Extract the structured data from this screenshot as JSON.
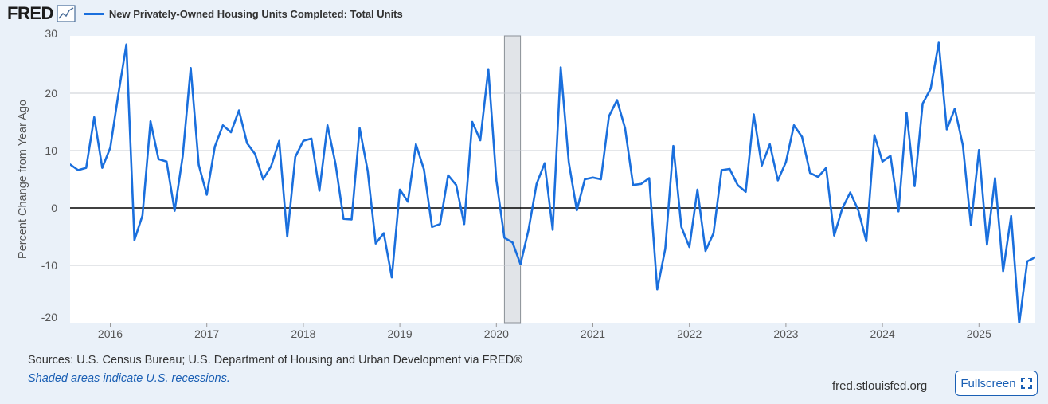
{
  "header": {
    "logo_text": "FRED",
    "graph_icon": "line-chart-icon",
    "title": "New Privately-Owned Housing Units Completed: Total Units",
    "series_color": "#1a6fdd"
  },
  "footer": {
    "sources": "Sources: U.S. Census Bureau; U.S. Department of Housing and Urban Development via FRED®",
    "recession_note": "Shaded areas indicate U.S. recessions.",
    "site": "fred.stlouisfed.org",
    "fullscreen_label": "Fullscreen",
    "fullscreen_icon": "expand-icon"
  },
  "chart_data": {
    "type": "line",
    "title": "New Privately-Owned Housing Units Completed: Total Units",
    "xlabel": "",
    "ylabel": "Percent Change from Year Ago",
    "ylim": [
      -20,
      30
    ],
    "xlim": [
      "2015-08",
      "2025-08"
    ],
    "y_ticks": [
      30,
      20,
      10,
      0,
      -10,
      -20
    ],
    "x_ticks": [
      "2016",
      "2017",
      "2018",
      "2019",
      "2020",
      "2021",
      "2022",
      "2023",
      "2024",
      "2025"
    ],
    "grid": true,
    "zero_line": true,
    "recession": {
      "start": "2020-02",
      "end": "2020-04"
    },
    "series": [
      {
        "color": "#1a6fdd",
        "x": [
          "2015-08",
          "2015-09",
          "2015-10",
          "2015-11",
          "2015-12",
          "2016-01",
          "2016-02",
          "2016-03",
          "2016-04",
          "2016-05",
          "2016-06",
          "2016-07",
          "2016-08",
          "2016-09",
          "2016-10",
          "2016-11",
          "2016-12",
          "2017-01",
          "2017-02",
          "2017-03",
          "2017-04",
          "2017-05",
          "2017-06",
          "2017-07",
          "2017-08",
          "2017-09",
          "2017-10",
          "2017-11",
          "2017-12",
          "2018-01",
          "2018-02",
          "2018-03",
          "2018-04",
          "2018-05",
          "2018-06",
          "2018-07",
          "2018-08",
          "2018-09",
          "2018-10",
          "2018-11",
          "2018-12",
          "2019-01",
          "2019-02",
          "2019-03",
          "2019-04",
          "2019-05",
          "2019-06",
          "2019-07",
          "2019-08",
          "2019-09",
          "2019-10",
          "2019-11",
          "2019-12",
          "2020-01",
          "2020-02",
          "2020-03",
          "2020-04",
          "2020-05",
          "2020-06",
          "2020-07",
          "2020-08",
          "2020-09",
          "2020-10",
          "2020-11",
          "2020-12",
          "2021-01",
          "2021-02",
          "2021-03",
          "2021-04",
          "2021-05",
          "2021-06",
          "2021-07",
          "2021-08",
          "2021-09",
          "2021-10",
          "2021-11",
          "2021-12",
          "2022-01",
          "2022-02",
          "2022-03",
          "2022-04",
          "2022-05",
          "2022-06",
          "2022-07",
          "2022-08",
          "2022-09",
          "2022-10",
          "2022-11",
          "2022-12",
          "2023-01",
          "2023-02",
          "2023-03",
          "2023-04",
          "2023-05",
          "2023-06",
          "2023-07",
          "2023-08",
          "2023-09",
          "2023-10",
          "2023-11",
          "2023-12",
          "2024-01",
          "2024-02",
          "2024-03",
          "2024-04",
          "2024-05",
          "2024-06",
          "2024-07",
          "2024-08",
          "2024-09",
          "2024-10",
          "2024-11",
          "2024-12",
          "2025-01",
          "2025-02",
          "2025-03",
          "2025-04",
          "2025-05",
          "2025-06",
          "2025-07",
          "2025-08"
        ],
        "values": [
          7.6,
          6.6,
          7.0,
          15.8,
          7.0,
          10.5,
          19.8,
          28.5,
          -5.6,
          -1.3,
          15.1,
          8.5,
          8.1,
          -0.5,
          9.0,
          24.4,
          7.5,
          2.3,
          10.7,
          14.4,
          13.2,
          17.0,
          11.3,
          9.4,
          5.0,
          7.3,
          11.7,
          -5.0,
          8.9,
          11.7,
          12.1,
          3.0,
          14.4,
          7.7,
          -1.9,
          -2.0,
          13.9,
          6.5,
          -6.2,
          -4.4,
          -12.1,
          3.2,
          1.1,
          11.1,
          6.7,
          -3.3,
          -2.8,
          5.7,
          4.0,
          -2.8,
          15.0,
          11.8,
          24.2,
          4.8,
          -5.2,
          -6.0,
          -9.8,
          -3.8,
          4.2,
          7.8,
          -3.8,
          24.5,
          8.0,
          -0.4,
          5.0,
          5.3,
          5.0,
          16.0,
          18.8,
          13.9,
          4.0,
          4.2,
          5.2,
          -14.2,
          -7.1,
          10.8,
          -3.3,
          -6.8,
          3.2,
          -7.5,
          -4.4,
          6.6,
          6.8,
          4.0,
          2.8,
          16.3,
          7.4,
          11.1,
          4.8,
          8.0,
          14.4,
          12.4,
          6.1,
          5.4,
          7.0,
          -4.8,
          -0.1,
          2.7,
          -0.4,
          -5.8,
          12.7,
          8.1,
          9.1,
          -0.6,
          16.6,
          3.8,
          18.2,
          20.8,
          28.8,
          13.7,
          17.3,
          10.9,
          -3.0,
          10.1,
          -6.4,
          5.2,
          -11.0,
          -1.4,
          -20.2,
          -9.3,
          -8.6
        ]
      }
    ]
  }
}
